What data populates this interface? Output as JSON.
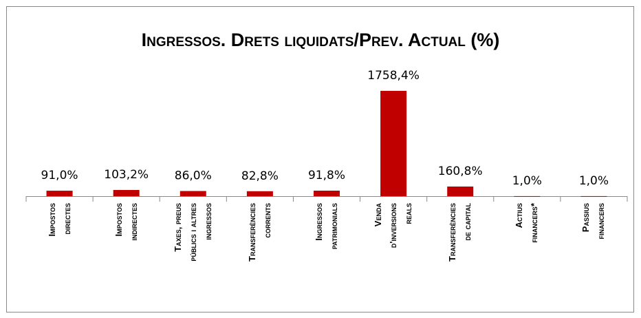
{
  "chart_data": {
    "type": "bar",
    "title": "Ingressos. Drets liquidats/Prev. Actual (%)",
    "categories": [
      "Impostos\ndirectes",
      "Impostos\nindirectes",
      "Taxes, preus\npúblics i altres\ningressos",
      "Transferències\ncorrents",
      "Ingressos\npatrimonials",
      "Venda\nd'inversions\nreals",
      "Transferències\nde capital",
      "Actius\nfinancers*",
      "Passius\nfinancers"
    ],
    "values": [
      91.0,
      103.2,
      86.0,
      82.8,
      91.8,
      1758.4,
      160.8,
      1.0,
      1.0
    ],
    "value_labels": [
      "91,0%",
      "103,2%",
      "86,0%",
      "82,8%",
      "91,8%",
      "1758,4%",
      "160,8%",
      "1,0%",
      "1,0%"
    ],
    "color": "#c00000",
    "ylim": [
      0,
      2000
    ]
  }
}
